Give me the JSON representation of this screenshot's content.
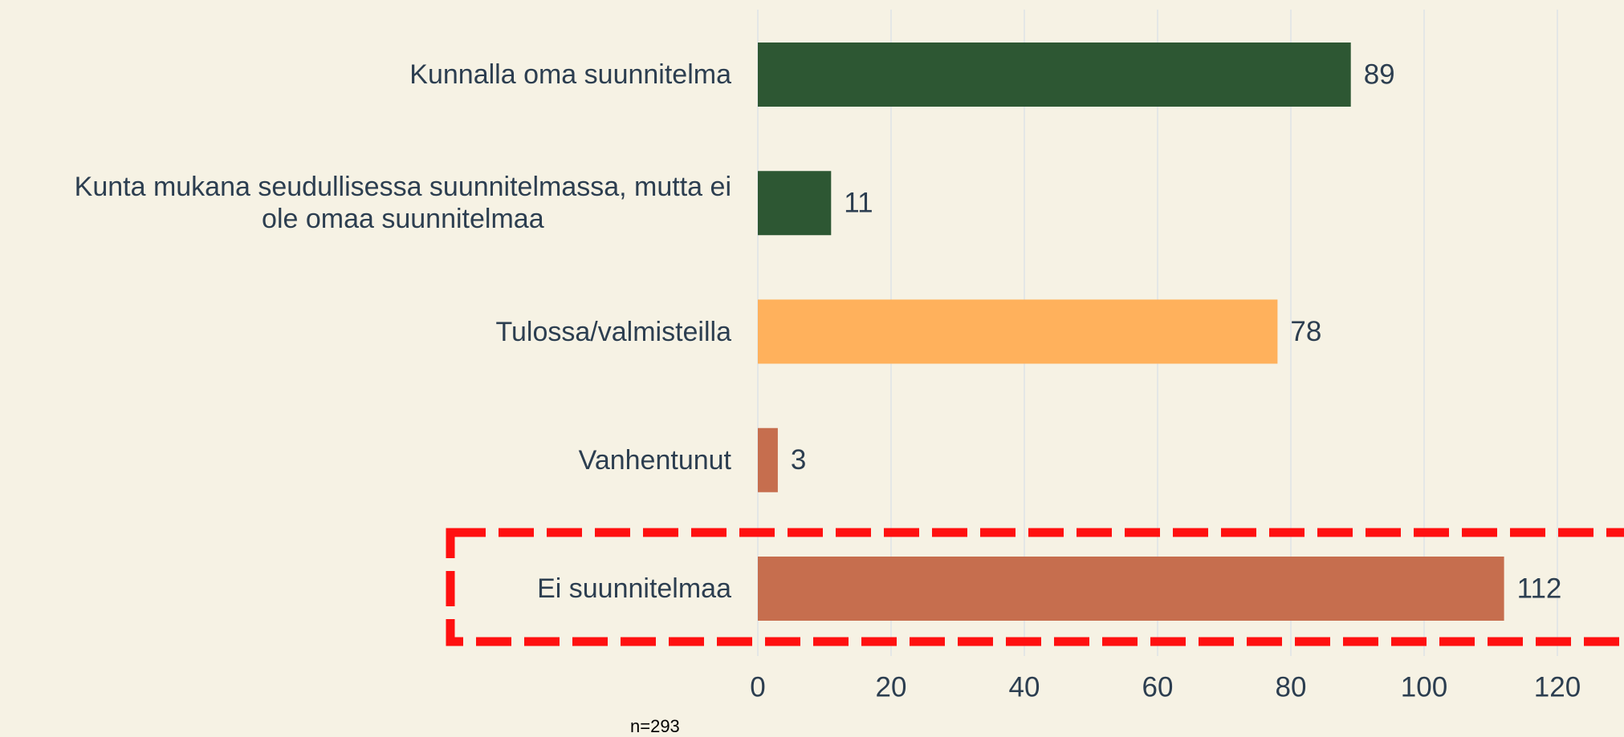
{
  "chart_data": {
    "type": "barh",
    "categories": [
      "Kunnalla oma suunnitelma",
      "Kunta mukana seudullisessa suunnitelmassa, mutta ei\nole omaa suunnitelmaa",
      "Tulossa/valmisteilla",
      "Vanhentunut",
      "Ei suunnitelmaa"
    ],
    "values": [
      89,
      11,
      78,
      3,
      112
    ],
    "colors": [
      "#2d5733",
      "#2d5733",
      "#ffb15c",
      "#c66e4e",
      "#c66e4e"
    ],
    "xlim": [
      0,
      130
    ],
    "xticks": [
      0,
      20,
      40,
      60,
      80,
      100,
      120
    ],
    "grid": true,
    "note": "n=293"
  }
}
